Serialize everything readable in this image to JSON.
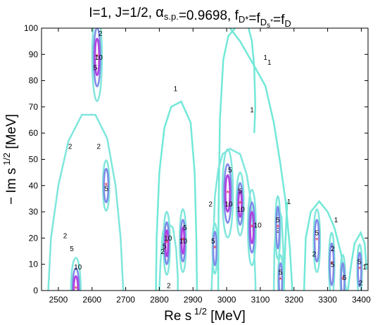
{
  "chart_data": {
    "type": "contour",
    "title": {
      "parts": [
        {
          "text": "I=1, J=1/2, "
        },
        {
          "text": "α",
          "style": "alpha"
        },
        {
          "text": "s.p.",
          "style": "sub"
        },
        {
          "text": "=0.9698, f"
        },
        {
          "text": "D*",
          "style": "sub"
        },
        {
          "text": "=f"
        },
        {
          "text": "D",
          "style": "sub"
        },
        {
          "text": "s",
          "style": "subsub"
        },
        {
          "text": "*",
          "style": "subsup"
        },
        {
          "text": "=f"
        },
        {
          "text": "D",
          "style": "sub"
        }
      ]
    },
    "xlabel": {
      "base": "Re s",
      "sup": "1/2",
      "unit": " [MeV]"
    },
    "ylabel": {
      "base": "− Im s",
      "sup": "1/2",
      "unit": " [MeV]"
    },
    "xlim": [
      2450,
      3420
    ],
    "ylim": [
      0,
      100
    ],
    "xticks": [
      2500,
      2600,
      2700,
      2800,
      2900,
      3000,
      3100,
      3200,
      3300,
      3400
    ],
    "yticks": [
      0,
      10,
      20,
      30,
      40,
      50,
      60,
      70,
      80,
      90,
      100
    ],
    "grid": false,
    "levels": [
      {
        "value": 1,
        "label": "1",
        "color": "#72e8d8"
      },
      {
        "value": 2,
        "label": "2",
        "color": "#7fe6dc"
      },
      {
        "value": 5,
        "label": "5",
        "color": "#7f8ae8"
      },
      {
        "value": 10,
        "label": "10",
        "color": "#b040e0"
      }
    ],
    "poles": [
      {
        "x": 2552,
        "y": 0.5,
        "rx": 12,
        "ry": 5,
        "levels": [
          2,
          5,
          10
        ],
        "labels": [
          [
            2,
            2520,
            20
          ],
          [
            5,
            2540,
            15
          ],
          [
            10,
            2558,
            8
          ]
        ]
      },
      {
        "x": 2615,
        "y": 89,
        "rx": 12,
        "ry": 7,
        "levels": [
          2,
          5,
          10
        ],
        "labels": [
          [
            2,
            2625,
            97
          ],
          [
            5,
            2610,
            84
          ],
          [
            10,
            2620,
            88
          ]
        ]
      },
      {
        "x": 2642,
        "y": 40,
        "rx": 8,
        "ry": 4,
        "levels": [
          2,
          5
        ],
        "labels": [
          [
            2,
            2620,
            54
          ],
          [
            5,
            2643,
            38
          ]
        ]
      },
      {
        "x": 2822,
        "y": 18,
        "rx": 8,
        "ry": 5,
        "levels": [
          2,
          5,
          10
        ],
        "labels": [
          [
            2,
            2810,
            14
          ],
          [
            5,
            2815,
            16
          ],
          [
            10,
            2826,
            19
          ]
        ]
      },
      {
        "x": 2870,
        "y": 19,
        "rx": 8,
        "ry": 5,
        "levels": [
          2,
          5,
          10
        ],
        "labels": [
          [
            5,
            2876,
            23
          ],
          [
            10,
            2871,
            18
          ]
        ]
      },
      {
        "x": 2965,
        "y": 16,
        "rx": 6,
        "ry": 4,
        "levels": [
          2,
          5
        ],
        "labels": [
          [
            5,
            2960,
            18
          ]
        ]
      },
      {
        "x": 3003,
        "y": 37,
        "rx": 13,
        "ry": 7,
        "levels": [
          2,
          5,
          10
        ],
        "labels": [
          [
            5,
            3010,
            45
          ],
          [
            10,
            3006,
            32
          ]
        ]
      },
      {
        "x": 3040,
        "y": 33,
        "rx": 9,
        "ry": 5,
        "levels": [
          2,
          5,
          10
        ],
        "labels": [
          [
            5,
            3040,
            37
          ],
          [
            10,
            3042,
            30
          ]
        ]
      },
      {
        "x": 3075,
        "y": 24,
        "rx": 10,
        "ry": 6,
        "levels": [
          2,
          5,
          10
        ],
        "labels": [
          [
            10,
            3092,
            24
          ]
        ]
      },
      {
        "x": 3152,
        "y": 24,
        "rx": 6,
        "ry": 5,
        "levels": [
          2,
          5
        ],
        "labels": [
          [
            5,
            3152,
            26
          ]
        ]
      },
      {
        "x": 3160,
        "y": 4,
        "rx": 6,
        "ry": 4,
        "levels": [
          2,
          5
        ],
        "labels": [
          [
            5,
            3160,
            6
          ]
        ]
      },
      {
        "x": 3268,
        "y": 19,
        "rx": 8,
        "ry": 5,
        "levels": [
          2,
          5
        ],
        "labels": [
          [
            2,
            3260,
            13
          ],
          [
            5,
            3268,
            21
          ]
        ]
      },
      {
        "x": 3312,
        "y": 10,
        "rx": 7,
        "ry": 5,
        "levels": [
          2,
          5
        ],
        "labels": [
          [
            2,
            3315,
            15
          ],
          [
            5,
            3315,
            9
          ]
        ]
      },
      {
        "x": 3345,
        "y": 4,
        "rx": 6,
        "ry": 4,
        "levels": [
          2,
          5
        ],
        "labels": [
          [
            5,
            3350,
            4
          ]
        ]
      },
      {
        "x": 3395,
        "y": 8,
        "rx": 6,
        "ry": 4,
        "levels": [
          2,
          5
        ],
        "labels": [
          [
            5,
            3394,
            10
          ],
          [
            2,
            3398,
            2
          ]
        ]
      }
    ],
    "big_contours": [
      {
        "label": "2",
        "points": [
          [
            2470,
            0
          ],
          [
            2478,
            20
          ],
          [
            2500,
            40
          ],
          [
            2530,
            57
          ],
          [
            2570,
            67
          ],
          [
            2610,
            67
          ],
          [
            2645,
            58
          ],
          [
            2670,
            40
          ],
          [
            2685,
            20
          ],
          [
            2693,
            0
          ]
        ],
        "label_at": [
          2535,
          54
        ]
      },
      {
        "label": "1",
        "points": [
          [
            2790,
            0
          ],
          [
            2792,
            20
          ],
          [
            2800,
            45
          ],
          [
            2815,
            62
          ],
          [
            2835,
            70
          ],
          [
            2865,
            72
          ],
          [
            2893,
            64
          ],
          [
            2905,
            45
          ],
          [
            2910,
            20
          ],
          [
            2912,
            0
          ]
        ],
        "label_at": [
          2848,
          76
        ]
      },
      {
        "label": "2",
        "points": [
          [
            2800,
            0
          ],
          [
            2803,
            10
          ],
          [
            2810,
            22
          ],
          [
            2822,
            26
          ],
          [
            2840,
            24
          ],
          [
            2850,
            16
          ],
          [
            2855,
            5
          ],
          [
            2855,
            0
          ]
        ],
        "label_at": [
          2828,
          1
        ]
      },
      {
        "label": "1",
        "points": [
          [
            2975,
            0
          ],
          [
            2976,
            30
          ],
          [
            2980,
            65
          ],
          [
            2990,
            88
          ],
          [
            3005,
            97
          ],
          [
            3025,
            100
          ]
        ],
        "label_at": [
          3075,
          68
        ]
      },
      {
        "label": "2",
        "points": [
          [
            2955,
            0
          ],
          [
            2960,
            18
          ],
          [
            2965,
            36
          ],
          [
            2975,
            46
          ],
          [
            2988,
            52
          ],
          [
            3010,
            54
          ],
          [
            3040,
            52
          ],
          [
            3060,
            44
          ],
          [
            3072,
            34
          ],
          [
            3080,
            20
          ],
          [
            3085,
            5
          ],
          [
            3086,
            0
          ]
        ],
        "label_at": [
          2952,
          32
        ]
      },
      {
        "label": "1",
        "points": [
          [
            3010,
            100
          ],
          [
            3040,
            95
          ],
          [
            3080,
            86
          ],
          [
            3115,
            78
          ],
          [
            3140,
            64
          ],
          [
            3160,
            48
          ],
          [
            3175,
            34
          ],
          [
            3188,
            16
          ],
          [
            3195,
            0
          ]
        ],
        "label_at": [
          3115,
          88
        ]
      },
      {
        "label": "1",
        "points": [
          [
            3065,
            100
          ],
          [
            3075,
            95
          ],
          [
            3082,
            85
          ],
          [
            3085,
            70
          ],
          [
            3082,
            60
          ]
        ],
        "label_at": [
          3127,
          86
        ]
      },
      {
        "label": "2",
        "points": [
          [
            3140,
            0
          ],
          [
            3142,
            16
          ],
          [
            3148,
            28
          ],
          [
            3156,
            31
          ],
          [
            3163,
            28
          ],
          [
            3168,
            16
          ],
          [
            3170,
            0
          ]
        ],
        "label_at": [
          3152,
          22
        ]
      },
      {
        "label": "1",
        "points": [
          [
            3230,
            0
          ],
          [
            3235,
            20
          ],
          [
            3250,
            30
          ],
          [
            3275,
            34
          ],
          [
            3300,
            30
          ],
          [
            3320,
            24
          ],
          [
            3340,
            14
          ],
          [
            3355,
            0
          ]
        ],
        "label_at": [
          3325,
          26
        ]
      },
      {
        "label": "1",
        "points": [
          [
            3360,
            0
          ],
          [
            3370,
            10
          ],
          [
            3380,
            18
          ],
          [
            3398,
            22
          ],
          [
            3410,
            18
          ],
          [
            3416,
            8
          ]
        ],
        "label_at": [
          3410,
          8
        ]
      },
      {
        "label": "1",
        "points": [
          [
            3170,
            0
          ],
          [
            3172,
            10
          ],
          [
            3175,
            20
          ],
          [
            3178,
            28
          ],
          [
            3180,
            34
          ]
        ],
        "label_at": [
          3185,
          33
        ]
      }
    ]
  }
}
